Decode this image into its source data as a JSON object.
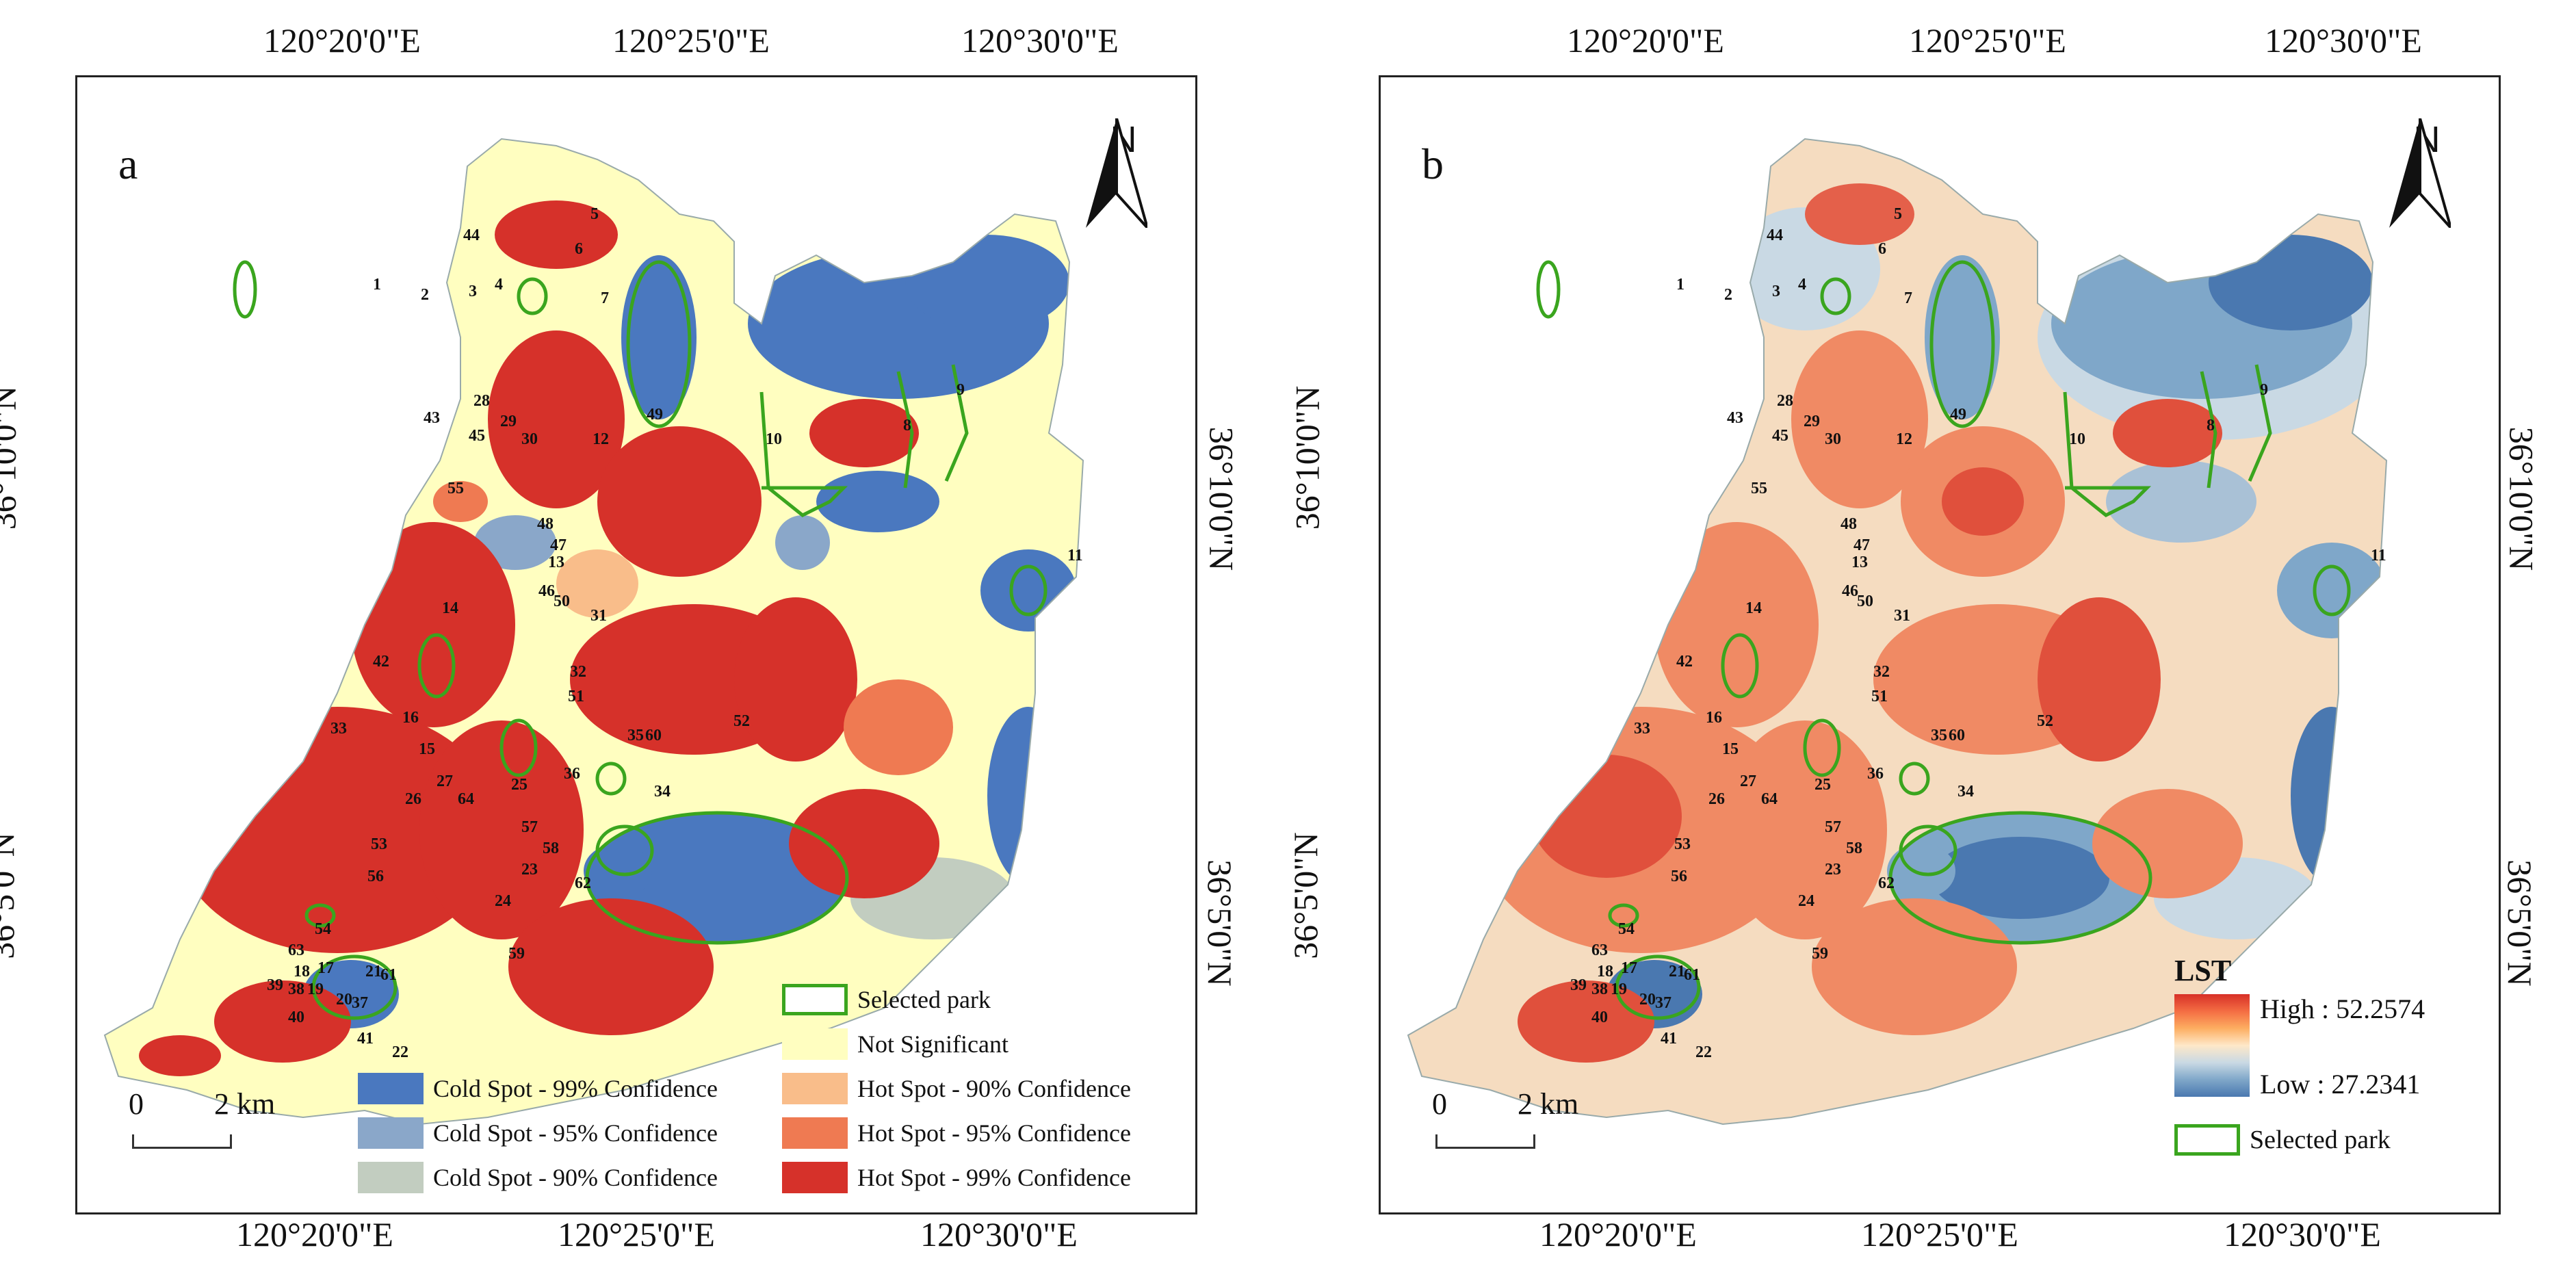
{
  "panels": {
    "a": {
      "letter": "a"
    },
    "b": {
      "letter": "b"
    }
  },
  "coordinates": {
    "lon_top": [
      "120°20'0\"E",
      "120°25'0\"E",
      "120°30'0\"E"
    ],
    "lon_bottom": [
      "120°20'0\"E",
      "120°25'0\"E",
      "120°30'0\"E"
    ],
    "lat_left": [
      "36°10'0\"N",
      "36°5'0\"N"
    ],
    "lat_right": [
      "36°10'0\"N",
      "36°5'0\"N"
    ]
  },
  "north_arrow": {
    "label": "N",
    "icon": "north-arrow-icon"
  },
  "scale_bar": {
    "zero": "0",
    "distance": "2 km"
  },
  "park_labels": [
    "1",
    "2",
    "3",
    "4",
    "5",
    "6",
    "7",
    "8",
    "9",
    "10",
    "11",
    "12",
    "13",
    "14",
    "15",
    "16",
    "17",
    "18",
    "19",
    "20",
    "21",
    "22",
    "23",
    "24",
    "25",
    "26",
    "27",
    "28",
    "29",
    "30",
    "31",
    "32",
    "33",
    "34",
    "35",
    "36",
    "37",
    "38",
    "39",
    "40",
    "41",
    "42",
    "43",
    "44",
    "45",
    "46",
    "47",
    "48",
    "49",
    "50",
    "51",
    "52",
    "53",
    "54",
    "55",
    "56",
    "57",
    "58",
    "59",
    "60",
    "61",
    "62",
    "63",
    "64"
  ],
  "legend_a": {
    "items": [
      {
        "label": "Selected park",
        "color": "#ffffff",
        "border": "#3aa51e"
      },
      {
        "label": "Not Significant",
        "color": "#fffec0"
      },
      {
        "label": "Hot Spot - 90% Confidence",
        "color": "#f9bd8a"
      },
      {
        "label": "Hot Spot - 95% Confidence",
        "color": "#ef7a52"
      },
      {
        "label": "Hot Spot - 99% Confidence",
        "color": "#d6312a"
      },
      {
        "label": "Cold Spot - 99% Confidence",
        "color": "#4a78bf"
      },
      {
        "label": "Cold Spot - 95% Confidence",
        "color": "#8aa7c9"
      },
      {
        "label": "Cold Spot - 90% Confidence",
        "color": "#c2cdc0"
      }
    ]
  },
  "legend_b": {
    "title": "LST",
    "high": "High : 52.2574",
    "low": "Low : 27.2341",
    "park": "Selected park"
  },
  "colors": {
    "park_outline": "#3aa51e",
    "hot": "#d6312a",
    "cold": "#4a78bf",
    "neutral": "#fffec0"
  }
}
